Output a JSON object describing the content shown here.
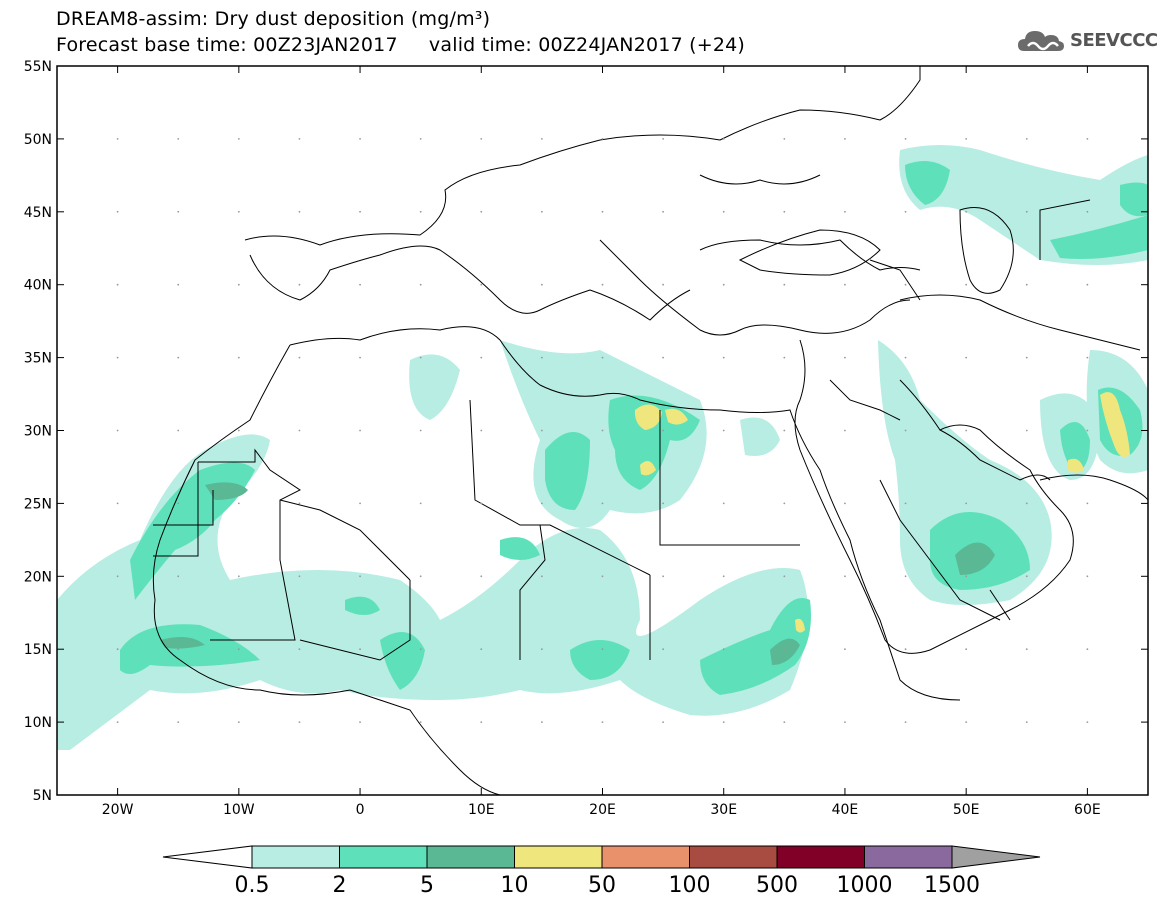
{
  "title": {
    "line1": "DREAM8-assim: Dry dust deposition (mg/m³)",
    "line2": "Forecast base time: 00Z23JAN2017     valid time: 00Z24JAN2017 (+24)"
  },
  "logo": {
    "text": "SEEVCCC",
    "icon": "cloud-logo-icon"
  },
  "map": {
    "lon_range": [
      -25,
      65
    ],
    "lat_range": [
      5,
      55
    ],
    "x_ticks": [
      "20W",
      "10W",
      "0",
      "10E",
      "20E",
      "30E",
      "40E",
      "50E",
      "60E"
    ],
    "y_ticks": [
      "55N",
      "50N",
      "45N",
      "40N",
      "35N",
      "30N",
      "25N",
      "20N",
      "15N",
      "10N",
      "5N"
    ]
  },
  "colorbar": {
    "labels": [
      "0.5",
      "2",
      "5",
      "10",
      "50",
      "100",
      "500",
      "1000",
      "1500"
    ],
    "colors": [
      "#ffffff",
      "#b7ede3",
      "#5ee1ba",
      "#5ab895",
      "#f0e67e",
      "#e8916b",
      "#a84b40",
      "#800028",
      "#8a6a9e",
      "#a0a0a0"
    ]
  }
}
